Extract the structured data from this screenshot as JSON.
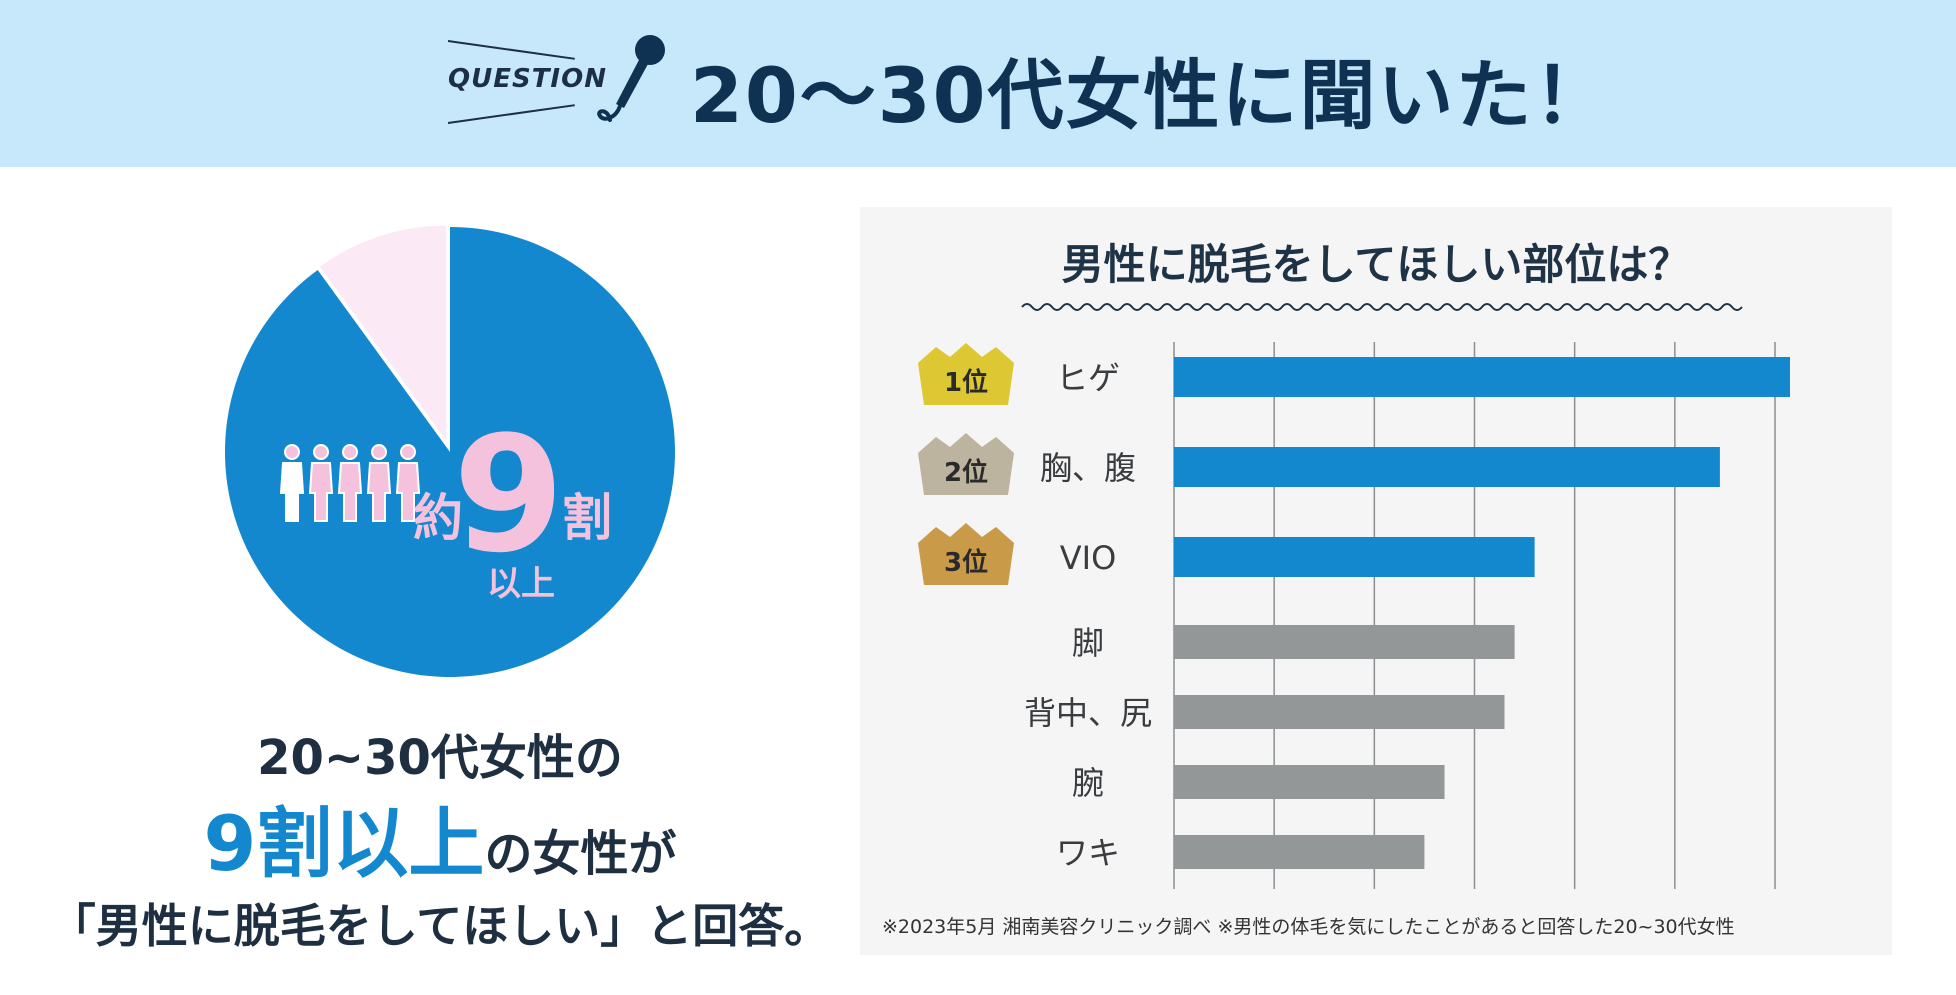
{
  "banner": {
    "question_label": "QUESTION",
    "title": "20～30代女性に聞いた！"
  },
  "pie": {
    "big_number": "9",
    "prefix": "約",
    "suffix": "割",
    "sub": "以上",
    "share_yes": 0.9,
    "colors": {
      "main": "#1488ce",
      "rest": "#fbe9f5",
      "accent": "#f5c2de"
    }
  },
  "caption": {
    "line1": "20~30代女性の",
    "line2_highlight": "9割以上",
    "line2_rest": "の女性が",
    "line3": "「男性に脱毛をしてほしい」と回答。"
  },
  "chart_data": {
    "type": "bar",
    "orientation": "horizontal",
    "title": "男性に脱毛をしてほしい部位は？",
    "categories": [
      "ヒゲ",
      "胸、腹",
      "VIO",
      "脚",
      "背中、尻",
      "腕",
      "ワキ"
    ],
    "values": [
      6.15,
      5.45,
      3.6,
      3.4,
      3.3,
      2.7,
      2.5
    ],
    "xlim": [
      0,
      6
    ],
    "grid": true,
    "ranks": [
      "1位",
      "2位",
      "3位"
    ],
    "colors": {
      "top": "#1488ce",
      "other": "#939798",
      "rank1": "#ddc733",
      "rank2": "#bcb49e",
      "rank3": "#c99a48"
    },
    "footnote": "※2023年5月 湘南美容クリニック調べ ※男性の体毛を気にしたことがあると回答した20~30代女性"
  }
}
